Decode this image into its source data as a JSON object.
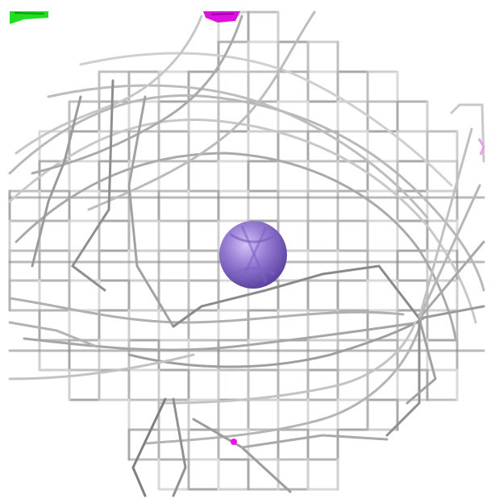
{
  "scene": {
    "kind": "molecular-visualization",
    "description_label": "",
    "atom": {
      "element_color": "#9a7fd6",
      "highlight": "#c9b6f0",
      "shadow": "#6a4fb0"
    },
    "mesh": {
      "color_light": "#d6d6d6",
      "color_mid": "#b0b0b0",
      "color_dark": "#7e7e7e"
    },
    "markers": [
      {
        "name": "green-marker",
        "color": "#22dd22"
      },
      {
        "name": "magenta-marker-top",
        "color": "#dd11dd"
      },
      {
        "name": "magenta-dot-bottom",
        "color": "#ee11ee"
      },
      {
        "name": "pink-tick-right",
        "color": "#e8a0e8"
      }
    ]
  }
}
